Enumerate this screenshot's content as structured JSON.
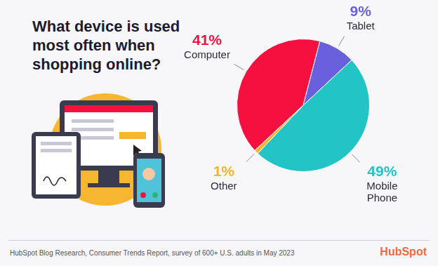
{
  "chart_data": {
    "type": "pie",
    "title": "What device is used most often when shopping online?",
    "categories": [
      "Computer",
      "Tablet",
      "Mobile Phone",
      "Other"
    ],
    "values": [
      41,
      9,
      49,
      1
    ],
    "value_labels": [
      "41%",
      "9%",
      "49%",
      "1%"
    ],
    "colors": [
      "#f5103f",
      "#6a5fdc",
      "#22c4c6",
      "#f4b52c"
    ],
    "data_labels": true,
    "annotations": [
      "HubSpot Blog Research, Consumer Trends Report, survey of 600+ U.S. adults in May 2023",
      "HubSpot"
    ]
  }
}
